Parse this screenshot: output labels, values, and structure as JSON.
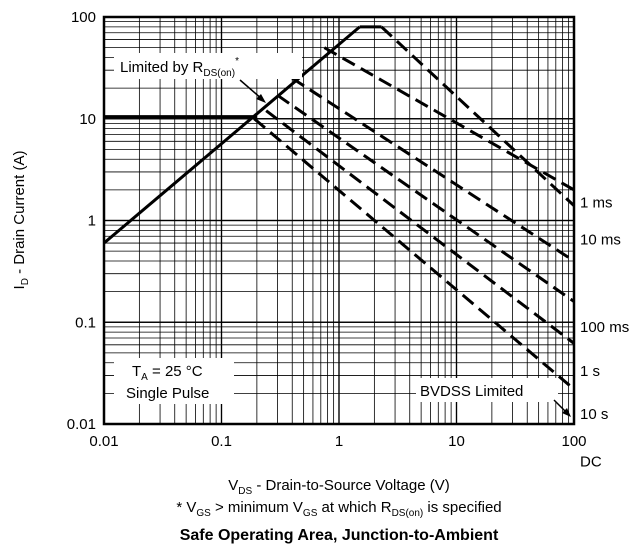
{
  "chart_data": {
    "type": "line",
    "scale": {
      "x": "log",
      "y": "log"
    },
    "xlim": [
      0.01,
      100
    ],
    "ylim": [
      0.01,
      100
    ],
    "x_ticks": [
      "0.01",
      "0.1",
      "1",
      "10",
      "100"
    ],
    "y_ticks": [
      "0.01",
      "0.1",
      "1",
      "10",
      "100"
    ],
    "grid": true,
    "xlabel": {
      "main": "V",
      "sub": "DS",
      "rest": " - Drain-to-Source Voltage (V)"
    },
    "ylabel": {
      "main": "I",
      "sub": "D",
      "rest": " - Drain Current (A)"
    },
    "footnote": {
      "p1": "* V",
      "s1": "GS",
      "p2": " > minimum V",
      "s2": "GS",
      "p3": " at which R",
      "s3": "DS(on)",
      "p4": " is specified"
    },
    "title": "Safe Operating Area, Junction-to-Ambient",
    "annotations": {
      "limited_main": "Limited by R",
      "limited_sub": "DS(on)",
      "limited_star": "*",
      "ta_main": "T",
      "ta_sub": "A",
      "ta_rest": " = 25 °C",
      "pulse": "Single Pulse",
      "bvdss": "BVDSS Limited"
    },
    "rdson_line": [
      [
        0.01,
        0.6
      ],
      [
        1.5,
        80
      ]
    ],
    "current_limit": {
      "value": 10.5,
      "x_end": 0.2
    },
    "top_limit": 80,
    "series": [
      {
        "name": "1 ms",
        "points": [
          [
            2.3,
            80
          ],
          [
            100,
            1.4
          ]
        ]
      },
      {
        "name": "10 ms",
        "points": [
          [
            0.75,
            50
          ],
          [
            100,
            2.0
          ]
        ]
      },
      {
        "name": "100 ms",
        "points": [
          [
            0.4,
            25
          ],
          [
            100,
            0.4
          ]
        ]
      },
      {
        "name": "1 s",
        "points": [
          [
            0.3,
            17
          ],
          [
            100,
            0.16
          ]
        ]
      },
      {
        "name": "10 s",
        "points": [
          [
            0.24,
            12
          ],
          [
            100,
            0.062
          ]
        ]
      },
      {
        "name": "DC",
        "points": [
          [
            0.19,
            10
          ],
          [
            100,
            0.022
          ]
        ]
      }
    ],
    "series_label_y": [
      1.5,
      0.65,
      0.09,
      0.033,
      0.0125,
      0.0043
    ]
  }
}
